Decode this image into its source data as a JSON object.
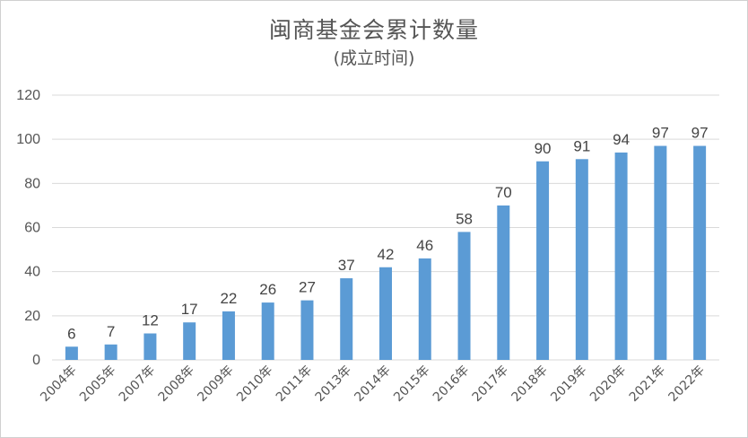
{
  "chart_data": {
    "type": "bar",
    "title": "闽商基金会累计数量",
    "subtitle": "(成立时间)",
    "categories": [
      "2004年",
      "2005年",
      "2007年",
      "2008年",
      "2009年",
      "2010年",
      "2011年",
      "2013年",
      "2014年",
      "2015年",
      "2016年",
      "2017年",
      "2018年",
      "2019年",
      "2020年",
      "2021年",
      "2022年"
    ],
    "values": [
      6,
      7,
      12,
      17,
      22,
      26,
      27,
      37,
      42,
      46,
      58,
      70,
      90,
      91,
      94,
      97,
      97
    ],
    "ylim": [
      0,
      120
    ],
    "yticks": [
      0,
      20,
      40,
      60,
      80,
      100,
      120
    ],
    "grid": true,
    "bar_color": "#5b9bd5",
    "data_labels": true
  }
}
